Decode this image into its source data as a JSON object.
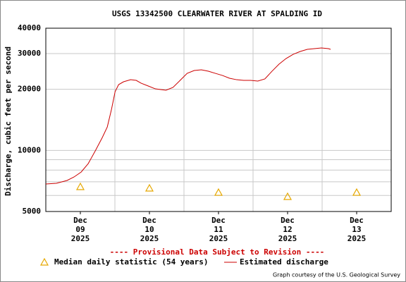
{
  "chart_data": {
    "type": "line",
    "title": "USGS 13342500 CLEARWATER RIVER AT SPALDING ID",
    "ylabel": "Discharge, cubic feet per second",
    "log_y": true,
    "ylim": [
      5000,
      40000
    ],
    "yticks": [
      5000,
      10000,
      20000,
      30000,
      40000
    ],
    "minor_yticks": [
      6000,
      7000,
      8000,
      9000
    ],
    "xlim": [
      8.5,
      13.5
    ],
    "xticks": [
      {
        "value": 9,
        "label": [
          "Dec",
          "09",
          "2025"
        ]
      },
      {
        "value": 10,
        "label": [
          "Dec",
          "10",
          "2025"
        ]
      },
      {
        "value": 11,
        "label": [
          "Dec",
          "11",
          "2025"
        ]
      },
      {
        "value": 12,
        "label": [
          "Dec",
          "12",
          "2025"
        ]
      },
      {
        "value": 13,
        "label": [
          "Dec",
          "13",
          "2025"
        ]
      }
    ],
    "xgrid": [
      9.5,
      10.5,
      11.5,
      12.5
    ],
    "grid": true,
    "annotation": "---- Provisional Data Subject to Revision ----",
    "credit": "Graph courtesy of the U.S. Geological Survey",
    "series": [
      {
        "name": "Estimated discharge",
        "color": "#cc0000",
        "kind": "line",
        "x": [
          8.5,
          8.653,
          8.807,
          8.909,
          9.012,
          9.114,
          9.216,
          9.318,
          9.39,
          9.451,
          9.503,
          9.554,
          9.625,
          9.728,
          9.809,
          9.881,
          9.983,
          10.086,
          10.239,
          10.341,
          10.444,
          10.546,
          10.648,
          10.751,
          10.853,
          10.955,
          11.058,
          11.16,
          11.262,
          11.364,
          11.467,
          11.569,
          11.671,
          11.774,
          11.876,
          11.978,
          12.081,
          12.183,
          12.285,
          12.387,
          12.49,
          12.592,
          12.623
        ],
        "values": [
          6830,
          6886,
          7110,
          7400,
          7825,
          8610,
          9950,
          11580,
          13050,
          15940,
          19470,
          21090,
          21780,
          22300,
          22130,
          21430,
          20760,
          20100,
          19790,
          20430,
          22130,
          23960,
          24750,
          24950,
          24550,
          23960,
          23400,
          22670,
          22300,
          22130,
          22130,
          21950,
          22490,
          24550,
          26600,
          28350,
          29750,
          30720,
          31460,
          31720,
          31970,
          31720,
          31460
        ]
      },
      {
        "name": "Median daily statistic (54 years)",
        "color": "#e6a800",
        "kind": "triangle",
        "x": [
          9,
          10,
          11,
          12,
          13
        ],
        "values": [
          6615,
          6510,
          6202,
          5914,
          6202
        ]
      }
    ]
  }
}
